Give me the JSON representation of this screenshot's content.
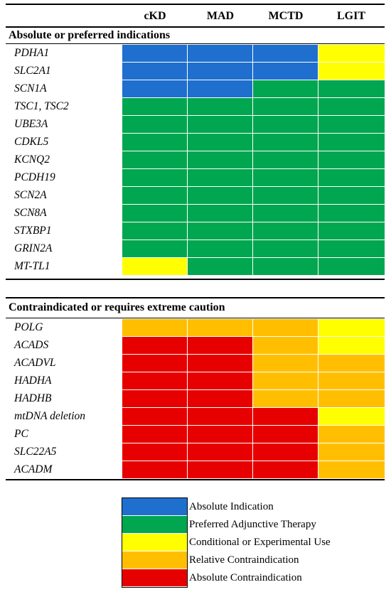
{
  "colors": {
    "blue": "#1f6fce",
    "green": "#00a650",
    "yellow": "#ffff00",
    "orange": "#ffbf00",
    "red": "#e60000"
  },
  "columns": [
    "cKD",
    "MAD",
    "MCTD",
    "LGIT"
  ],
  "sections": [
    {
      "title": "Absolute or preferred indications",
      "rows": [
        {
          "gene": "PDHA1",
          "cells": [
            "blue",
            "blue",
            "blue",
            "yellow"
          ]
        },
        {
          "gene": "SLC2A1",
          "cells": [
            "blue",
            "blue",
            "blue",
            "yellow"
          ]
        },
        {
          "gene": "SCN1A",
          "cells": [
            "blue",
            "blue",
            "green",
            "green"
          ]
        },
        {
          "gene": "TSC1, TSC2",
          "cells": [
            "green",
            "green",
            "green",
            "green"
          ]
        },
        {
          "gene": "UBE3A",
          "cells": [
            "green",
            "green",
            "green",
            "green"
          ]
        },
        {
          "gene": "CDKL5",
          "cells": [
            "green",
            "green",
            "green",
            "green"
          ]
        },
        {
          "gene": "KCNQ2",
          "cells": [
            "green",
            "green",
            "green",
            "green"
          ]
        },
        {
          "gene": "PCDH19",
          "cells": [
            "green",
            "green",
            "green",
            "green"
          ]
        },
        {
          "gene": "SCN2A",
          "cells": [
            "green",
            "green",
            "green",
            "green"
          ]
        },
        {
          "gene": "SCN8A",
          "cells": [
            "green",
            "green",
            "green",
            "green"
          ]
        },
        {
          "gene": "STXBP1",
          "cells": [
            "green",
            "green",
            "green",
            "green"
          ]
        },
        {
          "gene": "GRIN2A",
          "cells": [
            "green",
            "green",
            "green",
            "green"
          ]
        },
        {
          "gene": "MT-TL1",
          "cells": [
            "yellow",
            "green",
            "green",
            "green"
          ]
        }
      ]
    },
    {
      "title": "Contraindicated or requires extreme caution",
      "rows": [
        {
          "gene": "POLG",
          "cells": [
            "orange",
            "orange",
            "orange",
            "yellow"
          ]
        },
        {
          "gene": "ACADS",
          "cells": [
            "red",
            "red",
            "orange",
            "yellow"
          ]
        },
        {
          "gene": "ACADVL",
          "cells": [
            "red",
            "red",
            "orange",
            "orange"
          ]
        },
        {
          "gene": "HADHA",
          "cells": [
            "red",
            "red",
            "orange",
            "orange"
          ]
        },
        {
          "gene": "HADHB",
          "cells": [
            "red",
            "red",
            "orange",
            "orange"
          ]
        },
        {
          "gene": "mtDNA deletion",
          "cells": [
            "red",
            "red",
            "red",
            "yellow"
          ]
        },
        {
          "gene": "PC",
          "cells": [
            "red",
            "red",
            "red",
            "orange"
          ]
        },
        {
          "gene": "SLC22A5",
          "cells": [
            "red",
            "red",
            "red",
            "orange"
          ]
        },
        {
          "gene": "ACADM",
          "cells": [
            "red",
            "red",
            "red",
            "orange"
          ]
        }
      ]
    }
  ],
  "legend": [
    {
      "color": "blue",
      "label": "Absolute Indication"
    },
    {
      "color": "green",
      "label": "Preferred Adjunctive Therapy"
    },
    {
      "color": "yellow",
      "label": "Conditional or Experimental Use"
    },
    {
      "color": "orange",
      "label": "Relative Contraindication"
    },
    {
      "color": "red",
      "label": "Absolute Contraindication"
    }
  ]
}
